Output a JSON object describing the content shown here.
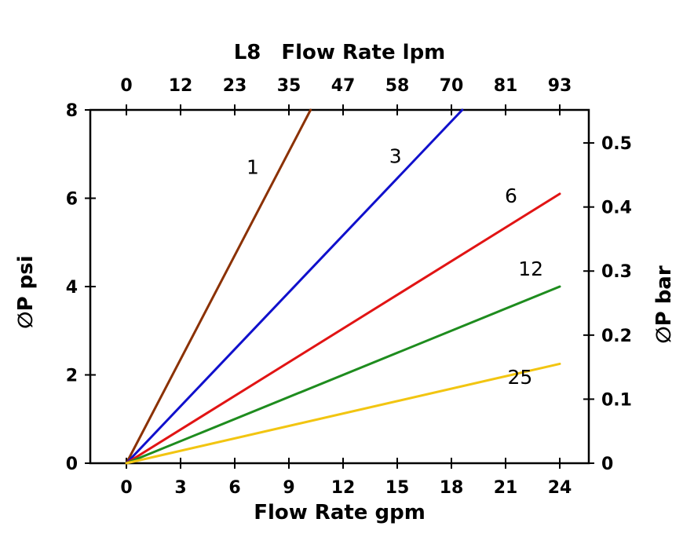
{
  "chart_data": {
    "type": "line",
    "model": "L8",
    "xlabel_top": "Flow Rate lpm",
    "xlabel_bottom": "Flow Rate gpm",
    "ylabel_left": "∅P psi",
    "ylabel_right": "∅P bar",
    "x_axis_bottom": {
      "unit": "gpm",
      "min": 0,
      "max": 24,
      "ticks": [
        0,
        3,
        6,
        9,
        12,
        15,
        18,
        21,
        24
      ]
    },
    "x_axis_top": {
      "unit": "lpm",
      "tick_labels": [
        "0",
        "12",
        "23",
        "35",
        "47",
        "58",
        "70",
        "81",
        "93"
      ]
    },
    "y_axis_left": {
      "unit": "psi",
      "min": 0,
      "max": 8,
      "ticks": [
        0,
        2,
        4,
        6,
        8
      ]
    },
    "y_axis_right": {
      "unit": "bar",
      "ticks": [
        0,
        0.1,
        0.2,
        0.3,
        0.4,
        0.5
      ],
      "psi_per_bar": 14.5038
    },
    "grid": false,
    "legend": "inline-curve-labels",
    "series": [
      {
        "name": "1",
        "color": "#8B3103",
        "points": [
          [
            0,
            0
          ],
          [
            10.2,
            8
          ]
        ],
        "label_at": [
          7.0,
          6.55
        ]
      },
      {
        "name": "3",
        "color": "#1010CC",
        "points": [
          [
            0,
            0
          ],
          [
            18.6,
            8
          ]
        ],
        "label_at": [
          14.9,
          6.8
        ]
      },
      {
        "name": "6",
        "color": "#E11414",
        "points": [
          [
            0,
            0
          ],
          [
            24,
            6.1
          ]
        ],
        "label_at": [
          21.3,
          5.9
        ]
      },
      {
        "name": "12",
        "color": "#1E8C1E",
        "points": [
          [
            0,
            0
          ],
          [
            24,
            4.0
          ]
        ],
        "label_at": [
          22.4,
          4.25
        ]
      },
      {
        "name": "25",
        "color": "#F2C511",
        "points": [
          [
            0,
            0
          ],
          [
            24,
            2.25
          ]
        ],
        "label_at": [
          21.8,
          1.8
        ]
      }
    ]
  }
}
